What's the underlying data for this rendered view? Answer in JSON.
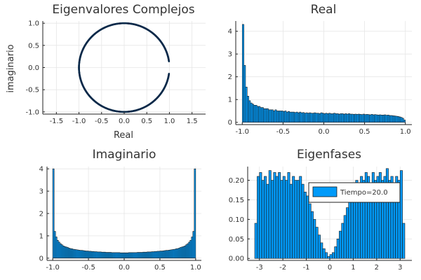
{
  "colors": {
    "bar": "#009AF9",
    "bar_edge": "#1a1a1a",
    "line": "#0b2a4a",
    "grid": "#e6e6e6",
    "axis": "#222222",
    "text": "#333333"
  },
  "chart_data": [
    {
      "id": "complex",
      "type": "scatter",
      "title": "Eigenvalores Complejos",
      "xlabel": "Real",
      "ylabel": "imaginario",
      "xlim": [
        -1.8,
        1.8
      ],
      "ylim": [
        -1.05,
        1.05
      ],
      "xticks": [
        -1.5,
        -1.0,
        -0.5,
        0.0,
        0.5,
        1.0,
        1.5
      ],
      "xtick_labels": [
        "-1.5",
        "-1.0",
        "-0.5",
        "0.0",
        "0.5",
        "1.0",
        "1.5"
      ],
      "yticks": [
        -1.0,
        -0.5,
        0.0,
        0.5,
        1.0
      ],
      "ytick_labels": [
        "-1.0",
        "-0.5",
        "0.0",
        "0.5",
        "1.0"
      ],
      "grid": true,
      "series": [
        {
          "shape": "unit circle, points at radius 1",
          "gap_angle_deg": [
            -8,
            8
          ]
        }
      ]
    },
    {
      "id": "real",
      "type": "bar",
      "title": "Real",
      "xlim": [
        -1.08,
        1.08
      ],
      "ylim": [
        -0.1,
        4.45
      ],
      "xticks": [
        -1.0,
        -0.5,
        0.0,
        0.5,
        1.0
      ],
      "xtick_labels": [
        "-1.0",
        "-0.5",
        "0.0",
        "0.5",
        "1.0"
      ],
      "yticks": [
        0,
        1,
        2,
        3,
        4
      ],
      "ytick_labels": [
        "0",
        "1",
        "2",
        "3",
        "4"
      ],
      "grid": true,
      "bin_start": -1.0,
      "bin_width": 0.02,
      "values": [
        4.3,
        2.5,
        1.55,
        1.15,
        0.95,
        0.85,
        0.8,
        0.75,
        0.75,
        0.7,
        0.7,
        0.65,
        0.65,
        0.6,
        0.6,
        0.6,
        0.55,
        0.55,
        0.55,
        0.5,
        0.55,
        0.5,
        0.5,
        0.5,
        0.5,
        0.48,
        0.5,
        0.45,
        0.48,
        0.45,
        0.45,
        0.45,
        0.43,
        0.45,
        0.42,
        0.45,
        0.42,
        0.43,
        0.4,
        0.42,
        0.4,
        0.42,
        0.4,
        0.4,
        0.42,
        0.4,
        0.4,
        0.38,
        0.42,
        0.4,
        0.38,
        0.4,
        0.38,
        0.4,
        0.38,
        0.38,
        0.4,
        0.38,
        0.38,
        0.36,
        0.38,
        0.38,
        0.36,
        0.38,
        0.36,
        0.38,
        0.36,
        0.36,
        0.35,
        0.36,
        0.35,
        0.36,
        0.35,
        0.34,
        0.36,
        0.34,
        0.35,
        0.34,
        0.33,
        0.35,
        0.33,
        0.34,
        0.33,
        0.32,
        0.33,
        0.32,
        0.32,
        0.33,
        0.31,
        0.32,
        0.3,
        0.3,
        0.29,
        0.28,
        0.27,
        0.26,
        0.24,
        0.22,
        0.18,
        0.1
      ]
    },
    {
      "id": "imag",
      "type": "bar",
      "title": "Imaginario",
      "xlim": [
        -1.08,
        1.08
      ],
      "ylim": [
        -0.1,
        4.1
      ],
      "xticks": [
        -1.0,
        -0.5,
        0.0,
        0.5,
        1.0
      ],
      "xtick_labels": [
        "-1.0",
        "-0.5",
        "0.0",
        "0.5",
        "1.0"
      ],
      "yticks": [
        0,
        1,
        2,
        3,
        4
      ],
      "ytick_labels": [
        "0",
        "1",
        "2",
        "3",
        "4"
      ],
      "grid": true,
      "bin_start": -1.0,
      "bin_width": 0.02,
      "values": [
        4.0,
        1.2,
        0.95,
        0.8,
        0.72,
        0.65,
        0.6,
        0.55,
        0.52,
        0.5,
        0.48,
        0.45,
        0.43,
        0.42,
        0.4,
        0.39,
        0.38,
        0.37,
        0.36,
        0.35,
        0.35,
        0.34,
        0.33,
        0.32,
        0.32,
        0.31,
        0.31,
        0.3,
        0.3,
        0.29,
        0.29,
        0.28,
        0.28,
        0.28,
        0.27,
        0.27,
        0.27,
        0.26,
        0.26,
        0.26,
        0.26,
        0.25,
        0.25,
        0.25,
        0.25,
        0.25,
        0.25,
        0.24,
        0.24,
        0.24,
        0.24,
        0.24,
        0.24,
        0.25,
        0.25,
        0.25,
        0.25,
        0.25,
        0.25,
        0.26,
        0.26,
        0.26,
        0.26,
        0.27,
        0.27,
        0.27,
        0.28,
        0.28,
        0.28,
        0.29,
        0.29,
        0.3,
        0.3,
        0.31,
        0.31,
        0.32,
        0.32,
        0.33,
        0.34,
        0.35,
        0.35,
        0.36,
        0.37,
        0.38,
        0.39,
        0.4,
        0.42,
        0.43,
        0.45,
        0.48,
        0.5,
        0.52,
        0.55,
        0.6,
        0.65,
        0.72,
        0.8,
        0.95,
        1.2,
        4.0
      ]
    },
    {
      "id": "phase",
      "type": "bar",
      "title": "Eigenfases",
      "xlim": [
        -3.5,
        3.5
      ],
      "ylim": [
        -0.005,
        0.235
      ],
      "xticks": [
        -3,
        -2,
        -1,
        0,
        1,
        2,
        3
      ],
      "xtick_labels": [
        "-3",
        "-2",
        "-1",
        "0",
        "1",
        "2",
        "3"
      ],
      "yticks": [
        0.0,
        0.05,
        0.1,
        0.15,
        0.2
      ],
      "ytick_labels": [
        "0.00",
        "0.05",
        "0.10",
        "0.15",
        "0.20"
      ],
      "grid": true,
      "legend": {
        "entries": [
          "Tiempo=20.0"
        ],
        "position": "top-right"
      },
      "bin_start": -3.2,
      "bin_width": 0.1,
      "values": [
        0.09,
        0.21,
        0.22,
        0.2,
        0.21,
        0.19,
        0.225,
        0.2,
        0.22,
        0.21,
        0.22,
        0.2,
        0.21,
        0.2,
        0.22,
        0.19,
        0.21,
        0.2,
        0.2,
        0.21,
        0.19,
        0.17,
        0.16,
        0.14,
        0.12,
        0.1,
        0.08,
        0.06,
        0.04,
        0.025,
        0.015,
        0.005,
        0.01,
        0.015,
        0.03,
        0.05,
        0.07,
        0.09,
        0.11,
        0.13,
        0.15,
        0.17,
        0.18,
        0.2,
        0.19,
        0.21,
        0.2,
        0.22,
        0.21,
        0.19,
        0.22,
        0.2,
        0.21,
        0.22,
        0.2,
        0.21,
        0.23,
        0.2,
        0.21,
        0.19,
        0.21,
        0.2,
        0.225,
        0.09
      ]
    }
  ]
}
